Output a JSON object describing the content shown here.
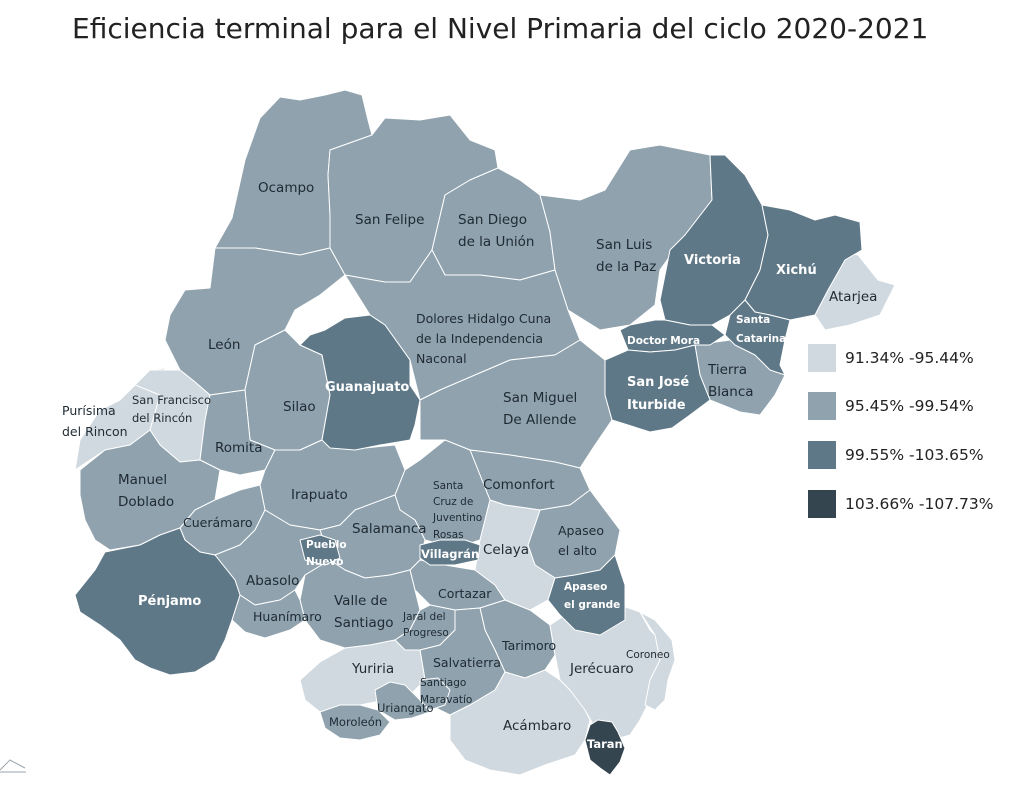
{
  "title": "Eficiencia terminal para el Nivel Primaria del ciclo 2020-2021",
  "colors": {
    "class1": "#d0d9df",
    "class2": "#8fa2ad",
    "class3": "#5f7887",
    "class4": "#35454f",
    "border": "#ffffff"
  },
  "legend": [
    {
      "label": "91.34% -95.44%",
      "color": "#d0d9df"
    },
    {
      "label": "95.45% -99.54%",
      "color": "#8fa2ad"
    },
    {
      "label": "99.55% -103.65%",
      "color": "#5f7887"
    },
    {
      "label": "103.66% -107.73%",
      "color": "#35454f"
    }
  ],
  "municipalities": {
    "ocampo": "Ocampo",
    "san_felipe": "San Felipe",
    "san_diego_1": "San Diego",
    "san_diego_2": "de la Unión",
    "san_luis_1": "San Luis",
    "san_luis_2": "de la Paz",
    "victoria": "Victoria",
    "xichu": "Xichú",
    "atarjea": "Atarjea",
    "santa_catarina_1": "Santa",
    "santa_catarina_2": "Catarina",
    "doctor_mora": "Doctor Mora",
    "leon": "León",
    "dolores_1": "Dolores Hidalgo Cuna",
    "dolores_2": "de la Independencia",
    "dolores_3": "Naconal",
    "guanajuato": "Guanajuato",
    "san_jose_1": "San José",
    "san_jose_2": "Iturbide",
    "tierra_blanca_1": "Tierra",
    "tierra_blanca_2": "Blanca",
    "purisima_1": "Purísima",
    "purisima_2": "del Rincon",
    "sfr_1": "San Francisco",
    "sfr_2": "del Rincón",
    "silao": "Silao",
    "san_miguel_1": "San Miguel",
    "san_miguel_2": "De Allende",
    "romita": "Romita",
    "manuel_doblado_1": "Manuel",
    "manuel_doblado_2": "Doblado",
    "irapuato": "Irapuato",
    "santa_cruz_1": "Santa",
    "santa_cruz_2": "Cruz de",
    "santa_cruz_3": "Juventino",
    "santa_cruz_4": "Rosas",
    "comonfort": "Comonfort",
    "cueramaro": "Cuerámaro",
    "salamanca": "Salamanca",
    "apaseo_alto_1": "Apaseo",
    "apaseo_alto_2": "el alto",
    "pueblo_nuevo_1": "Pueblo",
    "pueblo_nuevo_2": "Nuevo",
    "villagran": "Villagrán",
    "celaya": "Celaya",
    "penjamo": "Pénjamo",
    "abasolo": "Abasolo",
    "apaseo_grande_1": "Apaseo",
    "apaseo_grande_2": "el grande",
    "cortazar": "Cortazar",
    "valle_1": "Valle de",
    "valle_2": "Santiago",
    "huanimaro": "Huanímaro",
    "jaral_1": "Jaral del",
    "jaral_2": "Progreso",
    "tarimoro": "Tarimoro",
    "coroneo": "Coroneo",
    "yuriria": "Yuriria",
    "salvatierra": "Salvatierra",
    "jerecuaro": "Jerécuaro",
    "santiago_m_1": "Santiago",
    "santiago_m_2": "Maravatío",
    "uriangato": "Uriangato",
    "moroleon": "Moroleón",
    "acambaro": "Acámbaro",
    "tarandacuao": "Tarandacuao"
  }
}
